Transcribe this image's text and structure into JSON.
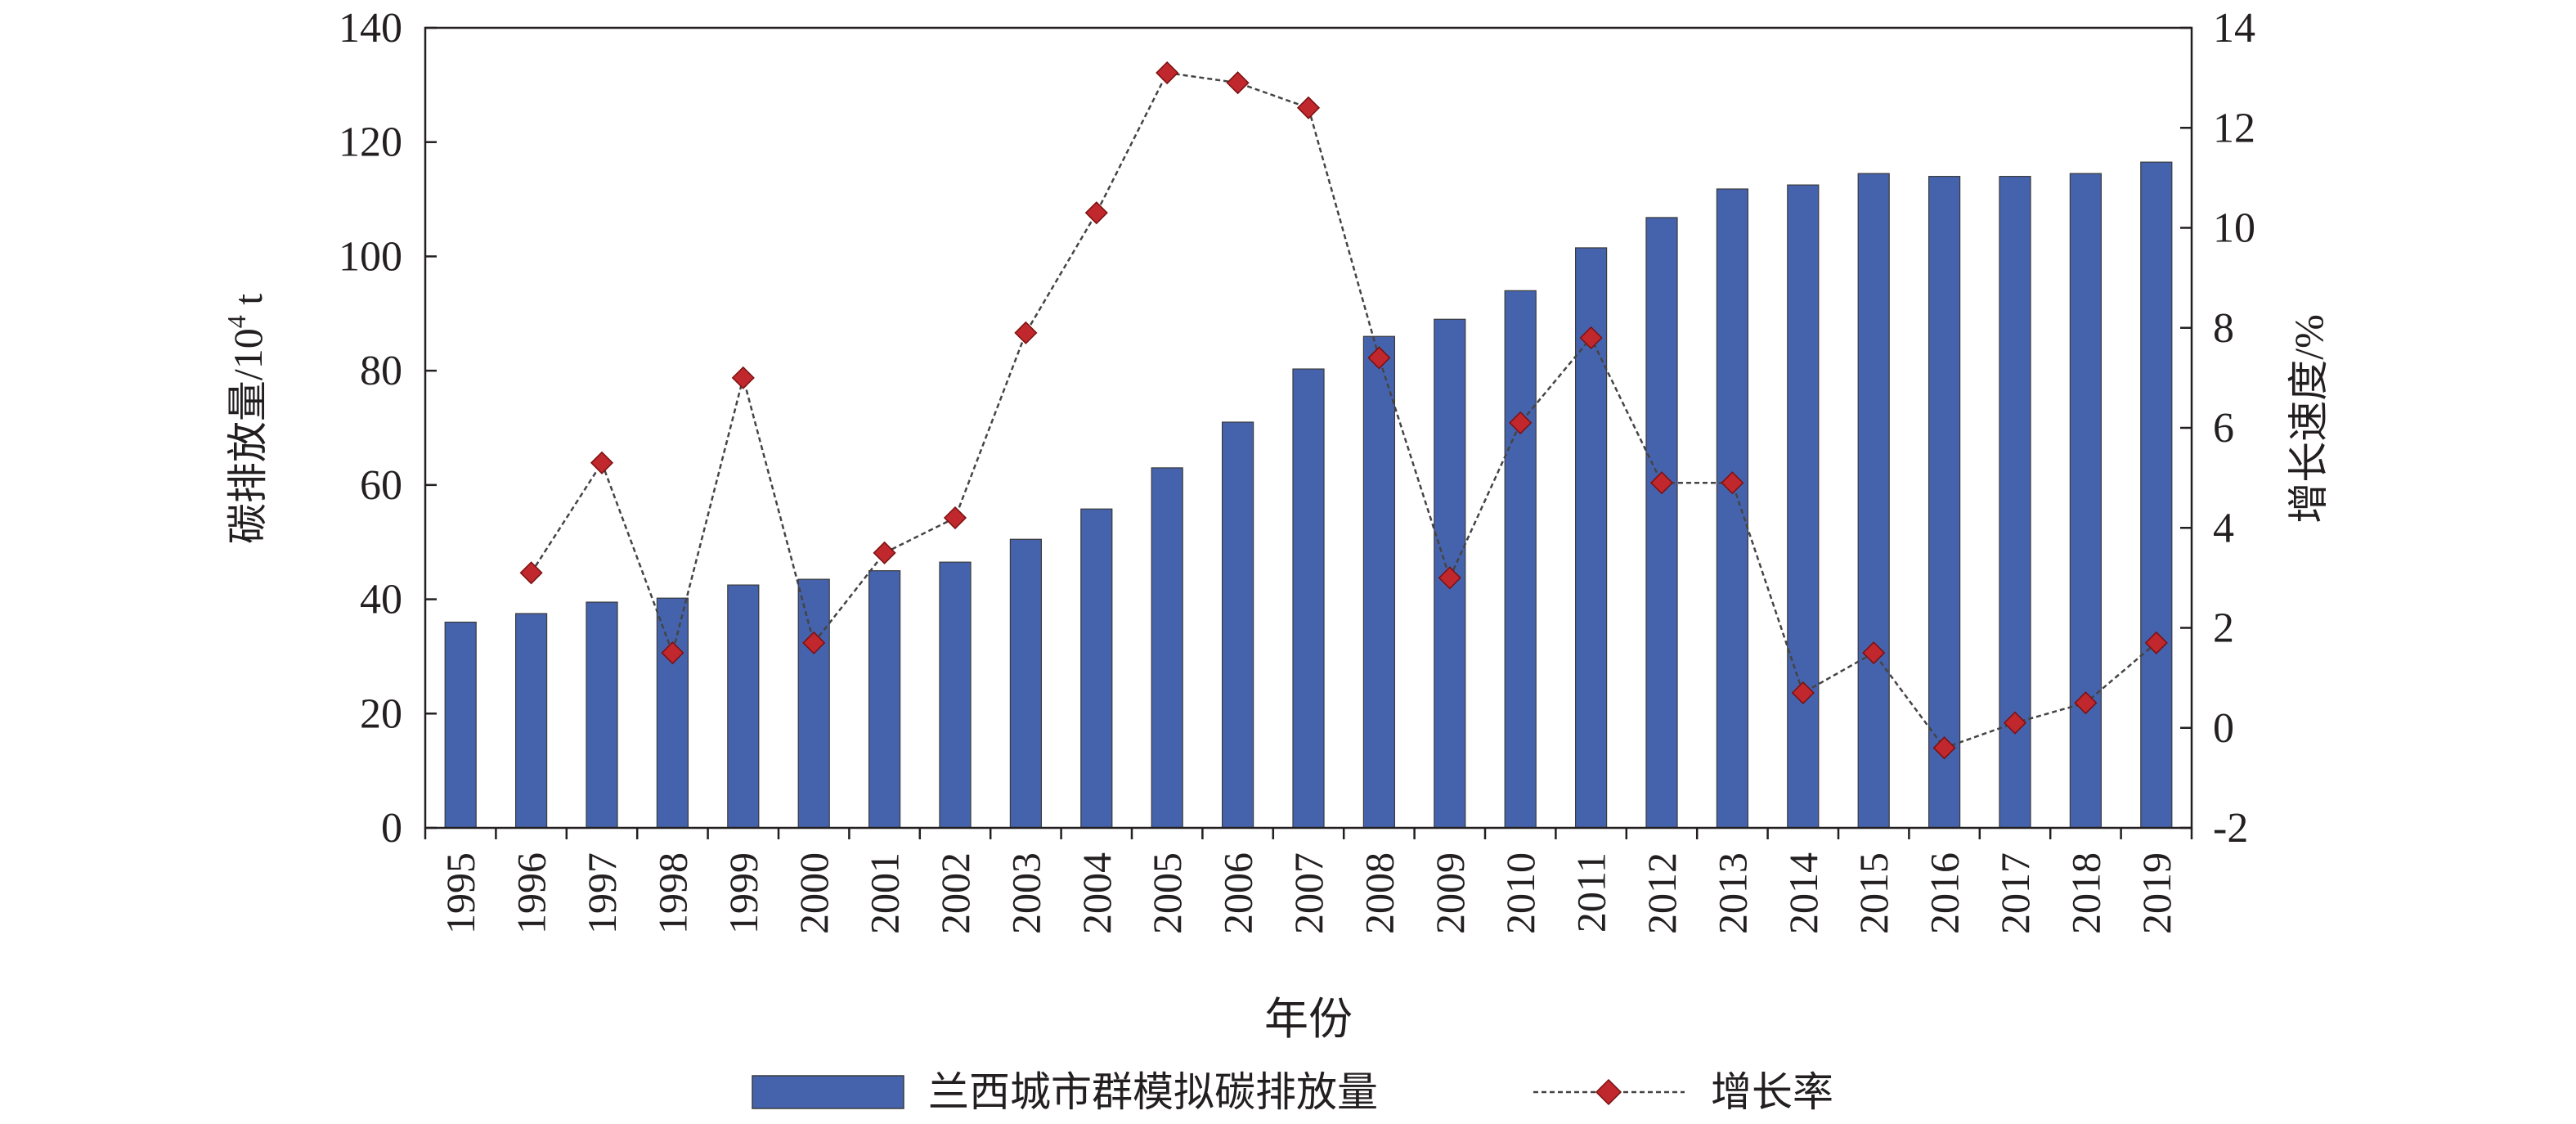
{
  "chart_data": {
    "type": "bar",
    "title": "",
    "xlabel": "年份",
    "ylabel": "碳排放量/10",
    "ylabel_sup": "4",
    "ylabel_tail": " t",
    "y2label": "增长速度/%",
    "ylim": [
      0,
      140
    ],
    "yticks": [
      0,
      20,
      40,
      60,
      80,
      100,
      120,
      140
    ],
    "y2lim": [
      -2,
      14
    ],
    "y2ticks": [
      -2,
      0,
      2,
      4,
      6,
      8,
      10,
      12,
      14
    ],
    "categories": [
      "1995",
      "1996",
      "1997",
      "1998",
      "1999",
      "2000",
      "2001",
      "2002",
      "2003",
      "2004",
      "2005",
      "2006",
      "2007",
      "2008",
      "2009",
      "2010",
      "2011",
      "2012",
      "2013",
      "2014",
      "2015",
      "2016",
      "2017",
      "2018",
      "2019"
    ],
    "series": [
      {
        "name": "兰西城市群模拟碳排放量",
        "kind": "bar",
        "axis": "left",
        "color": "#4563ad",
        "values": [
          36.0,
          37.5,
          39.5,
          40.2,
          42.5,
          43.5,
          45.0,
          46.5,
          50.5,
          55.8,
          63.0,
          71.0,
          80.3,
          86.0,
          89.0,
          94.0,
          101.5,
          106.8,
          111.8,
          112.5,
          114.5,
          114.0,
          114.0,
          114.5,
          116.5
        ]
      },
      {
        "name": "增长率",
        "kind": "line",
        "axis": "right",
        "color": "#c0282d",
        "line_color": "#444444",
        "values": [
          null,
          3.1,
          5.3,
          1.5,
          7.0,
          1.7,
          3.5,
          4.2,
          7.9,
          10.3,
          13.1,
          12.9,
          12.4,
          7.4,
          3.0,
          6.1,
          7.8,
          4.9,
          4.9,
          0.7,
          1.5,
          -0.4,
          0.1,
          0.5,
          1.7
        ]
      }
    ],
    "grid": false,
    "legend": "bottom"
  }
}
